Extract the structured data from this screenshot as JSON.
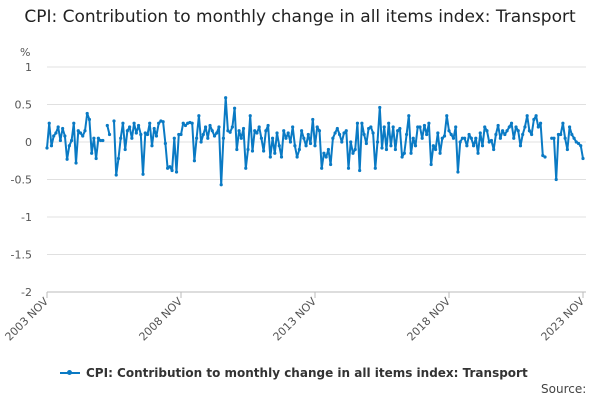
{
  "chart_data": {
    "type": "line",
    "title": "CPI: Contribution to monthly change in all items index: Transport",
    "ylabel": "%",
    "xlabel": "",
    "ylim": [
      -2,
      1
    ],
    "yticks": [
      "1",
      "0.5",
      "0",
      "-0.5",
      "-1",
      "-1.5",
      "-2"
    ],
    "ytick_values": [
      1,
      0.5,
      0,
      -0.5,
      -1,
      -1.5,
      -2
    ],
    "xticks": [
      "2003 NOV",
      "2008 NOV",
      "2013 NOV",
      "2018 NOV",
      "2023 NOV"
    ],
    "x_start": "2003 NOV",
    "x_end": "2023 NOV",
    "grid": true,
    "legend_position": "bottom",
    "color": "#0a7ac4",
    "series": [
      {
        "name": "CPI: Contribution to monthly change in all items index: Transport",
        "values": [
          -0.08,
          0.25,
          -0.05,
          0.08,
          0.12,
          0.2,
          0.02,
          0.18,
          0.08,
          -0.23,
          -0.05,
          0.02,
          0.25,
          -0.28,
          0.15,
          0.12,
          0.08,
          0.15,
          0.38,
          0.3,
          -0.15,
          0.05,
          -0.22,
          0.05,
          0.02,
          0.02,
          null,
          0.22,
          0.1,
          null,
          0.28,
          -0.44,
          -0.22,
          0.05,
          0.25,
          -0.1,
          0.15,
          0.2,
          0.05,
          0.25,
          0.12,
          0.22,
          0.1,
          -0.43,
          0.12,
          0.1,
          0.25,
          -0.05,
          0.18,
          0.08,
          0.25,
          0.28,
          0.27,
          -0.02,
          -0.35,
          -0.33,
          -0.38,
          0.05,
          -0.4,
          0.1,
          0.1,
          0.25,
          0.22,
          0.25,
          0.26,
          0.25,
          -0.25,
          0.05,
          0.35,
          0.0,
          0.1,
          0.2,
          0.05,
          0.22,
          0.15,
          0.08,
          0.12,
          0.2,
          -0.57,
          0.05,
          0.59,
          0.15,
          0.13,
          0.2,
          0.45,
          -0.1,
          0.15,
          0.05,
          0.18,
          -0.35,
          -0.1,
          0.35,
          -0.12,
          0.15,
          0.12,
          0.2,
          0.05,
          -0.12,
          0.15,
          0.22,
          -0.2,
          0.05,
          -0.15,
          0.12,
          -0.05,
          -0.2,
          0.15,
          0.05,
          0.12,
          0.0,
          0.2,
          -0.05,
          -0.2,
          -0.1,
          0.15,
          0.05,
          -0.05,
          0.1,
          -0.02,
          0.3,
          -0.05,
          0.2,
          0.15,
          -0.35,
          -0.15,
          -0.2,
          -0.1,
          -0.3,
          0.05,
          0.12,
          0.18,
          0.1,
          0.0,
          0.12,
          0.15,
          -0.35,
          0.0,
          -0.15,
          -0.1,
          0.25,
          -0.38,
          0.25,
          0.1,
          -0.02,
          0.18,
          0.2,
          0.12,
          -0.35,
          0.0,
          0.46,
          -0.08,
          0.2,
          -0.1,
          0.25,
          -0.05,
          0.2,
          -0.1,
          0.15,
          0.18,
          -0.2,
          -0.15,
          0.1,
          0.35,
          -0.15,
          0.05,
          -0.05,
          0.2,
          0.2,
          0.05,
          0.22,
          0.1,
          0.25,
          -0.3,
          -0.05,
          -0.1,
          0.12,
          -0.15,
          0.05,
          0.08,
          0.35,
          0.15,
          0.1,
          0.05,
          0.2,
          -0.4,
          0.0,
          0.05,
          0.05,
          -0.05,
          0.1,
          0.05,
          -0.05,
          0.05,
          -0.15,
          0.12,
          -0.05,
          0.2,
          0.15,
          0.0,
          0.02,
          -0.1,
          0.1,
          0.22,
          0.05,
          0.15,
          0.1,
          0.15,
          0.2,
          0.25,
          0.05,
          0.2,
          0.15,
          -0.05,
          0.1,
          0.2,
          0.35,
          0.15,
          0.1,
          0.3,
          0.35,
          0.2,
          0.25,
          -0.18,
          -0.2,
          null,
          null,
          0.05,
          0.05,
          -0.5,
          0.1,
          0.1,
          0.25,
          0.05,
          -0.1,
          0.2,
          0.1,
          0.05,
          0.0,
          -0.02,
          -0.05,
          -0.22
        ]
      }
    ]
  },
  "source_label": "Source:"
}
